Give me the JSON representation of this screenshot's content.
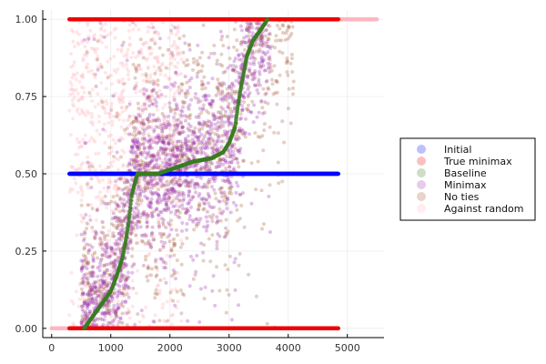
{
  "chart_data": {
    "type": "scatter",
    "title": "",
    "xlabel": "",
    "ylabel": "",
    "xlim": [
      -150,
      5620
    ],
    "ylim": [
      -0.03,
      1.03
    ],
    "x_ticks": [
      0,
      1000,
      2000,
      3000,
      4000,
      5000
    ],
    "x_tick_labels": [
      "0",
      "1000",
      "2000",
      "3000",
      "4000",
      "5000"
    ],
    "y_ticks": [
      0,
      0.25,
      0.5,
      0.75,
      1.0
    ],
    "y_tick_labels": [
      "0.00",
      "0.25",
      "0.50",
      "0.75",
      "1.00"
    ],
    "grid": true,
    "legend_position": "outer right",
    "series": [
      {
        "name": "Initial",
        "color": "#0000ff",
        "description": "constant line of points at y = 0.5",
        "x_range": [
          300,
          4850
        ],
        "y": 0.5
      },
      {
        "name": "True minimax",
        "color": "#ee0000",
        "description": "points at y = 1 and y = 0",
        "segments": [
          {
            "x_range": [
              300,
              4850
            ],
            "y": 1.0
          },
          {
            "x_range": [
              300,
              4850
            ],
            "y": 0.0
          }
        ]
      },
      {
        "name": "Baseline",
        "color": "#3a7d22",
        "description": "monotone S-shaped curve",
        "x": [
          550,
          700,
          850,
          1000,
          1100,
          1200,
          1250,
          1300,
          1330,
          1350,
          1450,
          1800,
          2100,
          2400,
          2700,
          2900,
          3000,
          3100,
          3150,
          3200,
          3250,
          3300,
          3400,
          3550,
          3650
        ],
        "y": [
          0.0,
          0.04,
          0.08,
          0.12,
          0.17,
          0.23,
          0.28,
          0.34,
          0.39,
          0.43,
          0.5,
          0.5,
          0.52,
          0.54,
          0.55,
          0.57,
          0.6,
          0.65,
          0.72,
          0.78,
          0.83,
          0.88,
          0.93,
          0.97,
          1.0
        ]
      },
      {
        "name": "Minimax",
        "color": "#9b30b0",
        "description": "dense scatter following the baseline curve",
        "x_range": [
          500,
          3700
        ]
      },
      {
        "name": "No ties",
        "color": "#a0522d",
        "description": "scatter spread around the baseline curve",
        "x_range": [
          500,
          4100
        ]
      },
      {
        "name": "Against random",
        "color": "#ffb6c1",
        "description": "light pink points at y = 0 (x 0-1400) and y = 1 (x 1300-5500), plus faint scatter",
        "segments": [
          {
            "x_range": [
              0,
              1400
            ],
            "y": 0.0
          },
          {
            "x_range": [
              1300,
              5500
            ],
            "y": 1.0
          }
        ]
      }
    ]
  }
}
